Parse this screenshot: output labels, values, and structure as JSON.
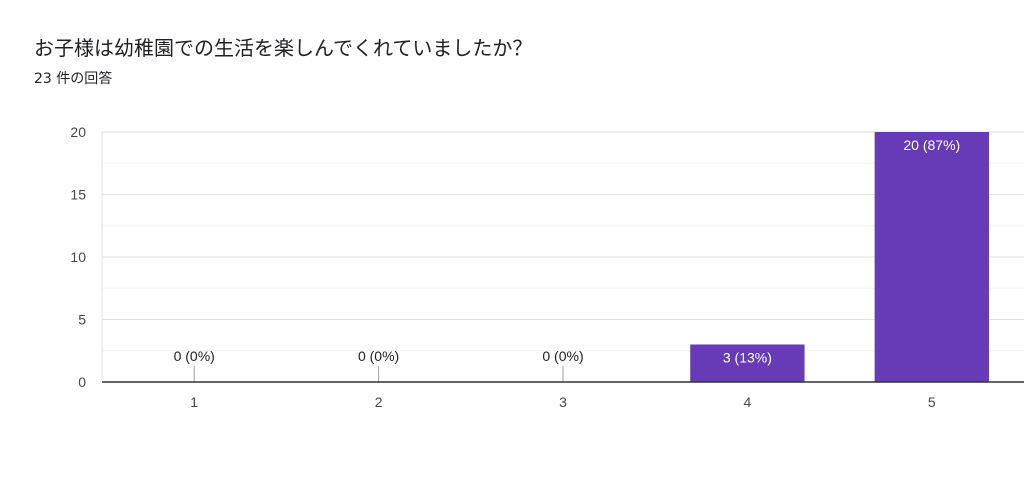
{
  "title": "お子様は幼稚園での生活を楽しんでくれていましたか？",
  "subtitle": "23 件の回答",
  "colors": {
    "bar": "#673ab7",
    "grid": "#e0e0e0",
    "axis": "#333333",
    "label_inside": "#ffffff",
    "label_outside": "#202124"
  },
  "chart_data": {
    "type": "bar",
    "categories": [
      "1",
      "2",
      "3",
      "4",
      "5"
    ],
    "values": [
      0,
      0,
      0,
      3,
      20
    ],
    "data_labels": [
      "0 (0%)",
      "0 (0%)",
      "0 (0%)",
      "3 (13%)",
      "20 (87%)"
    ],
    "ylim": [
      0,
      20
    ],
    "yticks": [
      0,
      5,
      10,
      15,
      20
    ],
    "grid": true,
    "xlabel": "",
    "ylabel": ""
  }
}
